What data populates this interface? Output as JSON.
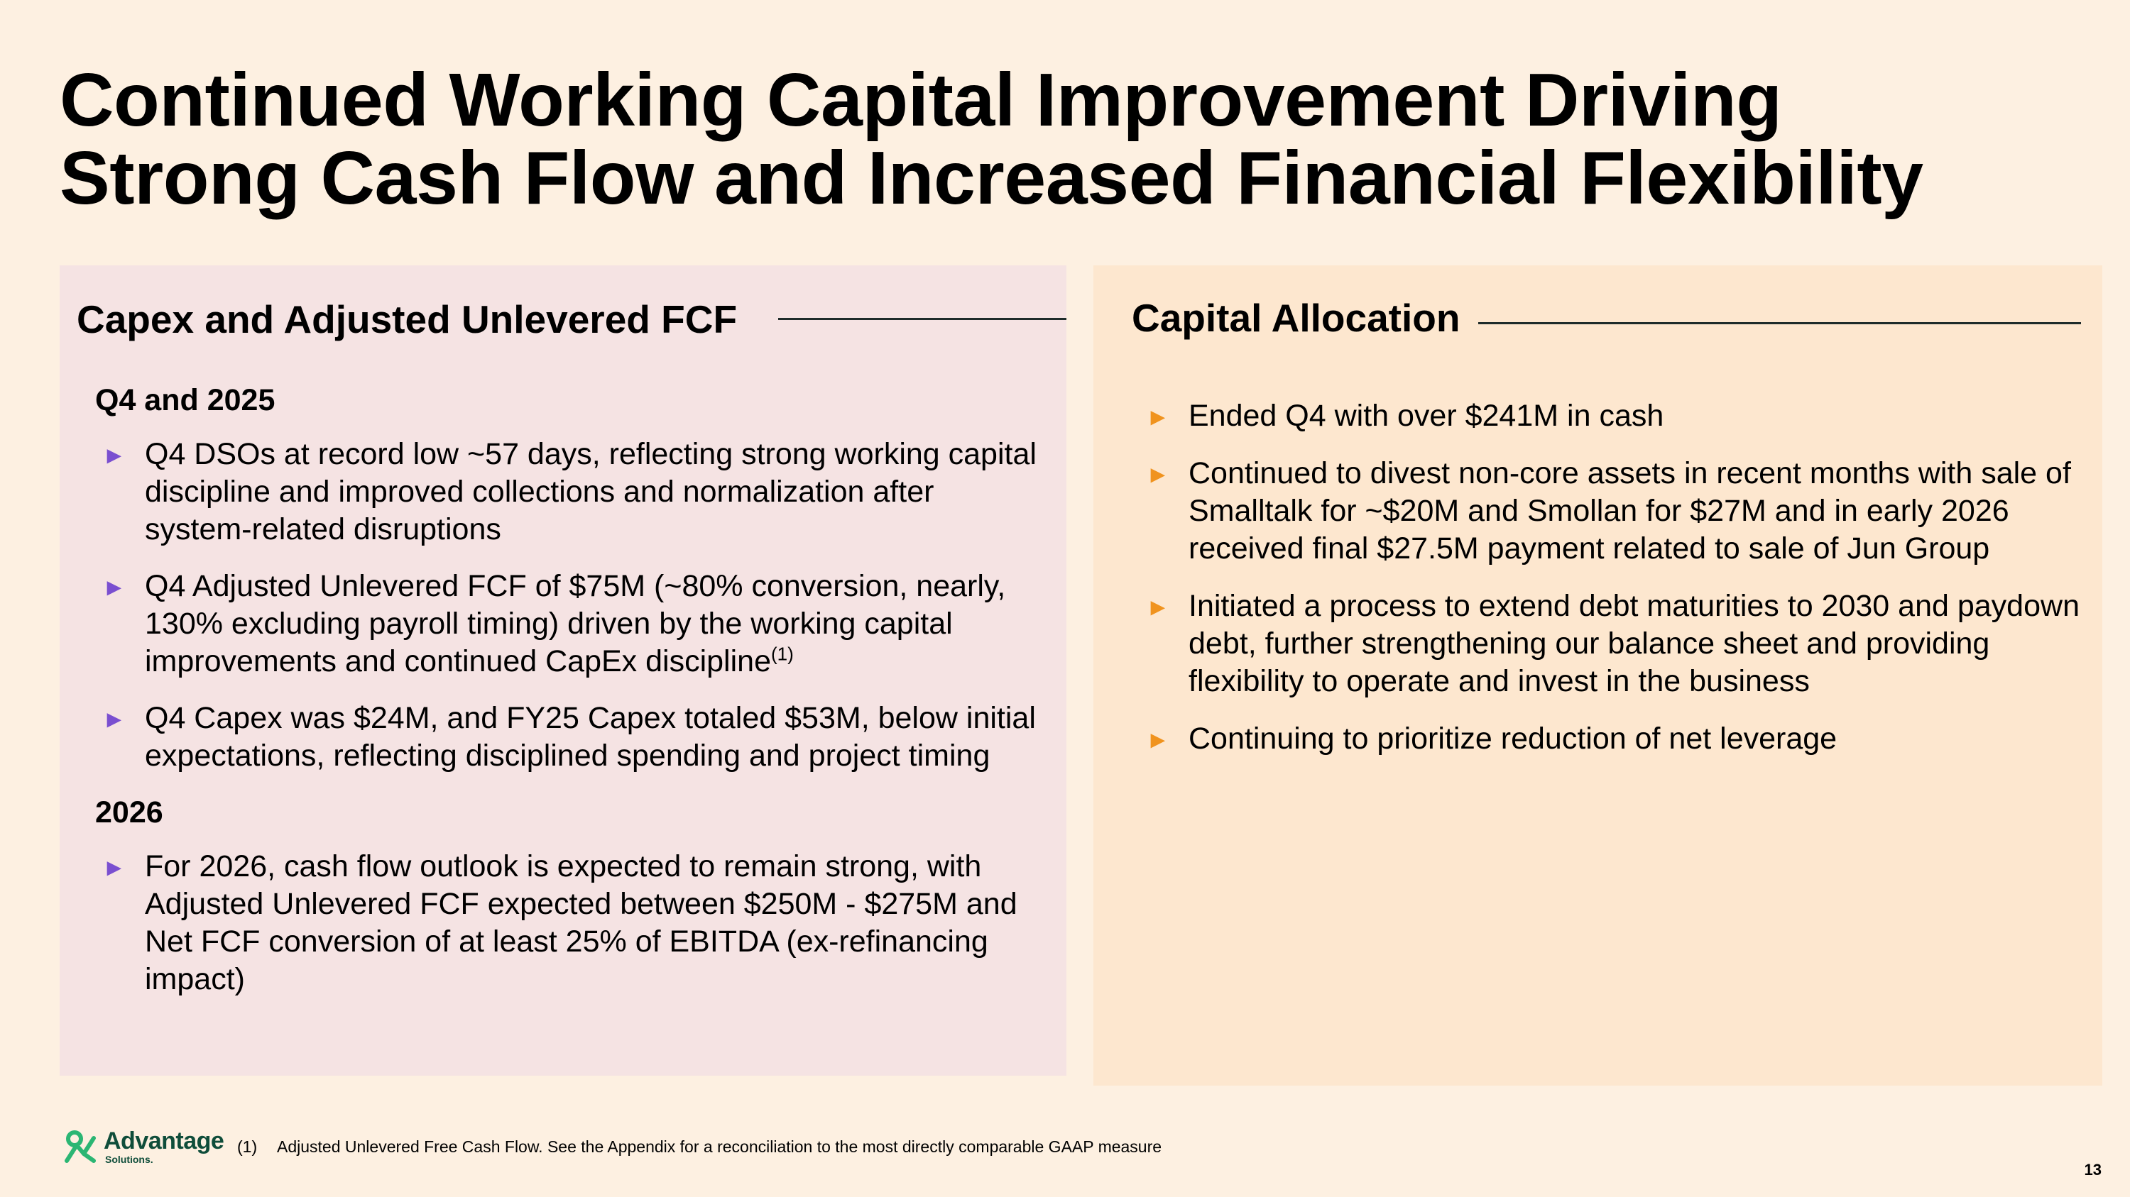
{
  "title": {
    "line1": "Continued Working Capital Improvement Driving",
    "line2": "Strong Cash Flow and Increased Financial Flexibility"
  },
  "left_panel": {
    "heading": "Capex and Adjusted Unlevered FCF",
    "sections": [
      {
        "subhead": "Q4 and 2025",
        "bullets": [
          {
            "text": "Q4 DSOs at record low ~57 days, reflecting strong working capital discipline and improved collections and normalization after system-related disruptions"
          },
          {
            "text": "Q4 Adjusted Unlevered FCF of $75M (~80% conversion, nearly, 130% excluding payroll timing) driven by the working capital improvements and continued CapEx discipline",
            "sup": "(1)"
          },
          {
            "text": "Q4 Capex was $24M, and FY25 Capex totaled $53M, below initial expectations, reflecting disciplined spending and project timing"
          }
        ]
      },
      {
        "subhead": "2026",
        "bullets": [
          {
            "text": "For 2026, cash flow outlook is expected to remain strong, with Adjusted Unlevered FCF expected between $250M - $275M and Net FCF conversion of at least 25% of EBITDA (ex-refinancing impact)"
          }
        ]
      }
    ]
  },
  "right_panel": {
    "heading": "Capital Allocation",
    "bullets": [
      {
        "text": "Ended Q4 with over $241M in cash"
      },
      {
        "text": "Continued to divest non-core assets in recent months with sale of Smalltalk for ~$20M and Smollan for $27M  and in early 2026 received final $27.5M payment related to sale of Jun Group"
      },
      {
        "text": "Initiated a process to extend debt maturities to 2030 and paydown debt, further strengthening our balance sheet and providing flexibility to operate and invest in the business"
      },
      {
        "text": "Continuing to prioritize reduction of net leverage"
      }
    ]
  },
  "bullet_marker": "►",
  "colors": {
    "background": "#fdf0e1",
    "left_panel_bg": "#f5e3e3",
    "right_panel_bg": "#fde7cf",
    "left_marker": "#7a4fd0",
    "right_marker": "#f0931e",
    "logo": "#0f4d3a",
    "logo_accent": "#2bb673"
  },
  "footer": {
    "logo_name": "Advantage",
    "logo_sub": "Solutions.",
    "logo_icon": "advantage-logo-icon",
    "footnote_number": "(1)",
    "footnote_text": "Adjusted Unlevered Free Cash Flow. See the Appendix for a reconciliation to the most directly comparable GAAP measure",
    "page_number": "13"
  }
}
